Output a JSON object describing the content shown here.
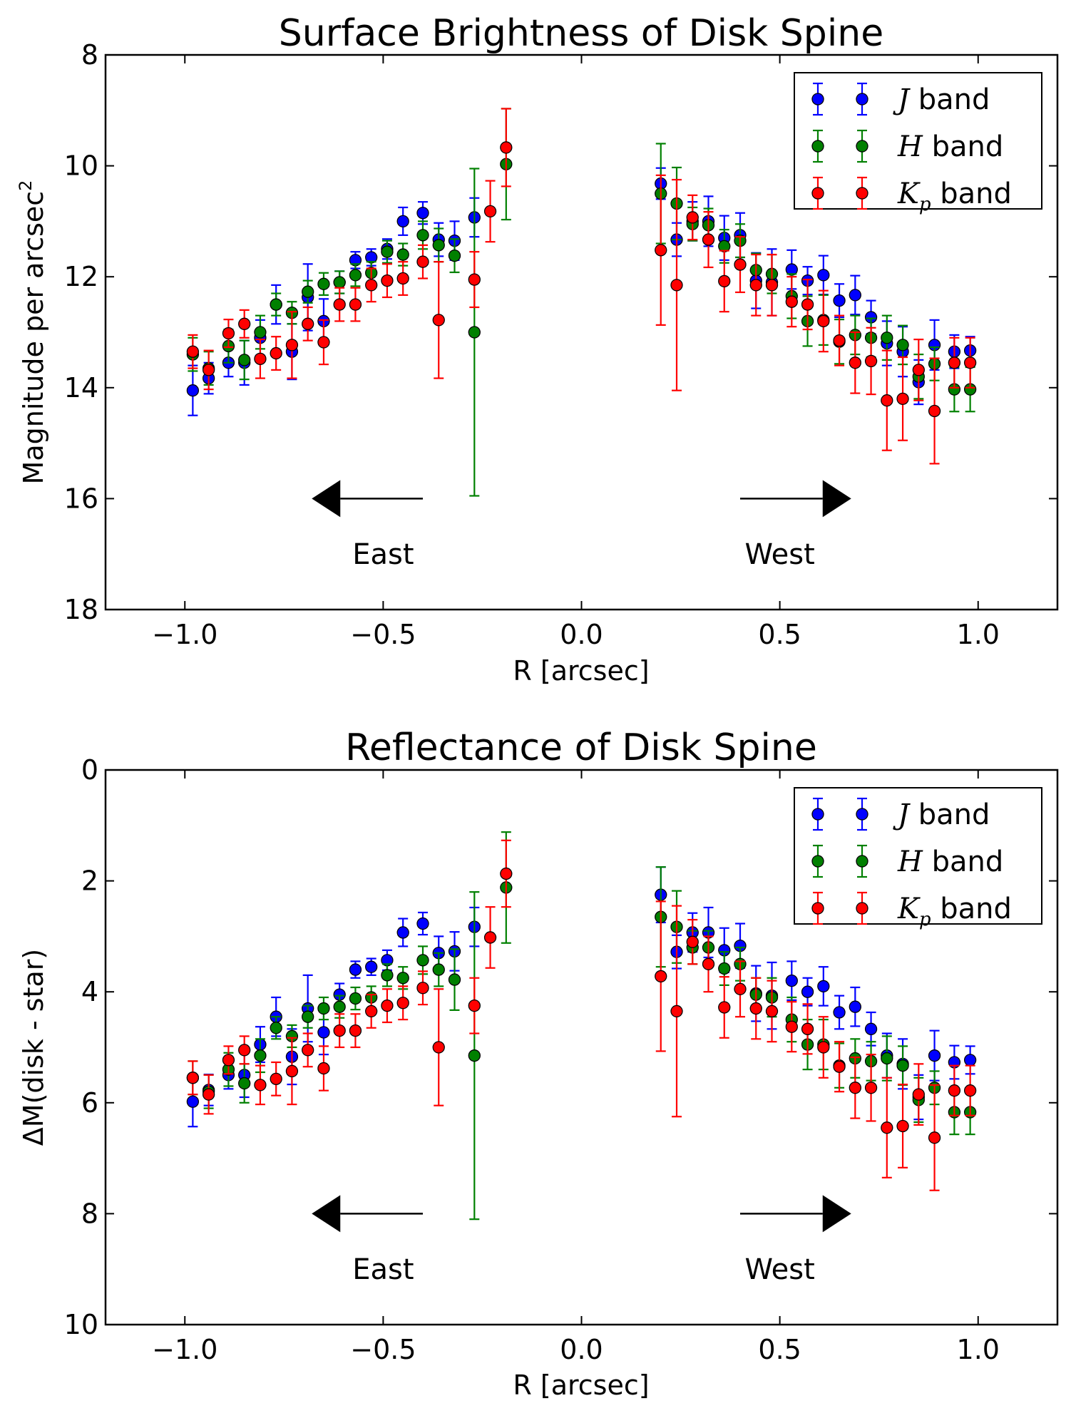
{
  "chart_data": [
    {
      "type": "errorbar",
      "title": "Surface Brightness of Disk Spine",
      "xlabel": "R [arcsec]",
      "ylabel": "Magnitude per arcsec",
      "ylabel_superscript": "2",
      "xlim": [
        -1.2,
        1.2
      ],
      "ylim": [
        18,
        8
      ],
      "y_inverted": true,
      "xticks": [
        -1.0,
        -0.5,
        0.0,
        0.5,
        1.0
      ],
      "xtick_labels": [
        "−1.0",
        "−0.5",
        "0.0",
        "0.5",
        "1.0"
      ],
      "yticks": [
        8,
        10,
        12,
        14,
        16,
        18
      ],
      "ytick_labels": [
        "8",
        "10",
        "12",
        "14",
        "16",
        "18"
      ],
      "annotations": [
        {
          "text": "East",
          "arrow_from": -0.4,
          "arrow_to": -0.68,
          "arrow_y": 16,
          "text_x": -0.5,
          "text_y": 17
        },
        {
          "text": "West",
          "arrow_from": 0.4,
          "arrow_to": 0.68,
          "arrow_y": 16,
          "text_x": 0.5,
          "text_y": 17
        }
      ],
      "legend_position": "upper-right",
      "series": [
        {
          "name": "J",
          "label_suffix": " band",
          "color": "#0000ff",
          "x": [
            -0.98,
            -0.94,
            -0.89,
            -0.85,
            -0.81,
            -0.77,
            -0.73,
            -0.69,
            -0.65,
            -0.61,
            -0.57,
            -0.53,
            -0.49,
            -0.45,
            -0.4,
            -0.36,
            -0.32,
            -0.27,
            0.2,
            0.24,
            0.28,
            0.32,
            0.36,
            0.4,
            0.44,
            0.48,
            0.53,
            0.57,
            0.61,
            0.65,
            0.69,
            0.73,
            0.77,
            0.81,
            0.85,
            0.89,
            0.94,
            0.98
          ],
          "y": [
            14.05,
            13.83,
            13.55,
            13.55,
            13.1,
            12.5,
            13.35,
            12.37,
            12.8,
            12.1,
            11.7,
            11.65,
            11.5,
            11.0,
            10.85,
            11.33,
            11.35,
            10.93,
            10.32,
            11.33,
            11.0,
            11.0,
            11.3,
            11.25,
            12.07,
            12.1,
            11.87,
            12.07,
            11.97,
            12.43,
            12.33,
            12.73,
            13.2,
            13.35,
            13.9,
            13.23,
            13.35,
            13.33
          ],
          "err": [
            0.45,
            0.28,
            0.25,
            0.4,
            0.32,
            0.35,
            0.5,
            0.6,
            0.4,
            0.2,
            0.15,
            0.15,
            0.18,
            0.25,
            0.2,
            0.3,
            0.35,
            0.35,
            0.28,
            0.3,
            0.35,
            0.45,
            0.4,
            0.4,
            0.5,
            0.6,
            0.35,
            0.25,
            0.35,
            0.3,
            0.35,
            0.3,
            0.4,
            0.45,
            0.4,
            0.45,
            0.3,
            0.25
          ]
        },
        {
          "name": "H",
          "label_suffix": " band",
          "color": "#008000",
          "x": [
            -0.98,
            -0.94,
            -0.89,
            -0.85,
            -0.81,
            -0.77,
            -0.73,
            -0.69,
            -0.65,
            -0.61,
            -0.57,
            -0.53,
            -0.49,
            -0.45,
            -0.4,
            -0.36,
            -0.32,
            -0.27,
            -0.19,
            0.2,
            0.24,
            0.28,
            0.32,
            0.36,
            0.4,
            0.44,
            0.48,
            0.53,
            0.57,
            0.61,
            0.65,
            0.69,
            0.73,
            0.77,
            0.81,
            0.85,
            0.89,
            0.94,
            0.98
          ],
          "y": [
            13.4,
            13.65,
            13.25,
            13.5,
            13.0,
            12.5,
            12.65,
            12.27,
            12.13,
            12.1,
            11.97,
            11.93,
            11.55,
            11.6,
            11.25,
            11.43,
            11.62,
            13.0,
            9.97,
            10.5,
            10.68,
            11.05,
            11.07,
            11.45,
            11.35,
            11.88,
            11.95,
            12.35,
            12.8,
            12.78,
            13.17,
            13.05,
            13.1,
            13.1,
            13.23,
            13.8,
            13.57,
            14.03,
            14.03
          ],
          "err": [
            0.3,
            0.3,
            0.3,
            0.35,
            0.3,
            0.2,
            0.2,
            0.2,
            0.2,
            0.2,
            0.2,
            0.2,
            0.2,
            0.2,
            0.25,
            0.3,
            0.3,
            2.95,
            1.0,
            0.9,
            0.65,
            0.3,
            0.3,
            0.3,
            0.3,
            0.3,
            0.35,
            0.4,
            0.45,
            0.45,
            0.4,
            0.35,
            0.35,
            0.4,
            0.35,
            0.4,
            0.3,
            0.4,
            0.4
          ]
        },
        {
          "name": "K",
          "sub": "p",
          "label_suffix": " band",
          "color": "#ff0000",
          "x": [
            -0.98,
            -0.94,
            -0.89,
            -0.85,
            -0.81,
            -0.77,
            -0.73,
            -0.69,
            -0.65,
            -0.61,
            -0.57,
            -0.53,
            -0.49,
            -0.45,
            -0.4,
            -0.36,
            -0.27,
            -0.23,
            -0.19,
            0.2,
            0.24,
            0.28,
            0.32,
            0.36,
            0.4,
            0.44,
            0.48,
            0.53,
            0.57,
            0.61,
            0.65,
            0.69,
            0.73,
            0.77,
            0.81,
            0.85,
            0.89,
            0.94,
            0.98
          ],
          "y": [
            13.35,
            13.68,
            13.02,
            12.85,
            13.48,
            13.38,
            13.23,
            12.85,
            13.18,
            12.5,
            12.5,
            12.15,
            12.07,
            12.03,
            11.73,
            12.78,
            12.05,
            10.82,
            9.67,
            11.52,
            12.15,
            10.93,
            11.33,
            12.08,
            11.78,
            12.15,
            12.15,
            12.45,
            12.5,
            12.8,
            13.15,
            13.55,
            13.52,
            14.23,
            14.2,
            13.68,
            14.42,
            13.55,
            13.55
          ],
          "err": [
            0.3,
            0.35,
            0.25,
            0.25,
            0.35,
            0.3,
            0.6,
            0.3,
            0.4,
            0.3,
            0.3,
            0.3,
            0.3,
            0.3,
            0.3,
            1.05,
            0.5,
            0.55,
            0.7,
            1.35,
            1.9,
            0.4,
            0.5,
            0.55,
            0.5,
            0.55,
            0.55,
            0.45,
            0.45,
            0.55,
            0.45,
            0.55,
            0.6,
            0.9,
            0.75,
            0.55,
            0.95,
            0.45,
            0.45
          ]
        }
      ]
    },
    {
      "type": "errorbar",
      "title": "Reflectance of Disk Spine",
      "xlabel": "R [arcsec]",
      "ylabel": "ΔM(disk - star)",
      "ylabel_superscript": "",
      "xlim": [
        -1.2,
        1.2
      ],
      "ylim": [
        10,
        0
      ],
      "y_inverted": true,
      "xticks": [
        -1.0,
        -0.5,
        0.0,
        0.5,
        1.0
      ],
      "xtick_labels": [
        "−1.0",
        "−0.5",
        "0.0",
        "0.5",
        "1.0"
      ],
      "yticks": [
        0,
        2,
        4,
        6,
        8,
        10
      ],
      "ytick_labels": [
        "0",
        "2",
        "4",
        "6",
        "8",
        "10"
      ],
      "annotations": [
        {
          "text": "East",
          "arrow_from": -0.4,
          "arrow_to": -0.68,
          "arrow_y": 8,
          "text_x": -0.5,
          "text_y": 9
        },
        {
          "text": "West",
          "arrow_from": 0.4,
          "arrow_to": 0.68,
          "arrow_y": 8,
          "text_x": 0.5,
          "text_y": 9
        }
      ],
      "legend_position": "upper-right",
      "series": [
        {
          "name": "J",
          "label_suffix": " band",
          "color": "#0000ff",
          "x": [
            -0.98,
            -0.94,
            -0.89,
            -0.85,
            -0.81,
            -0.77,
            -0.73,
            -0.69,
            -0.65,
            -0.61,
            -0.57,
            -0.53,
            -0.49,
            -0.45,
            -0.4,
            -0.36,
            -0.32,
            -0.27,
            0.2,
            0.24,
            0.28,
            0.32,
            0.36,
            0.4,
            0.44,
            0.48,
            0.53,
            0.57,
            0.61,
            0.65,
            0.69,
            0.73,
            0.77,
            0.81,
            0.85,
            0.89,
            0.94,
            0.98
          ],
          "y": [
            5.98,
            5.77,
            5.5,
            5.5,
            4.95,
            4.45,
            5.17,
            4.3,
            4.73,
            4.05,
            3.6,
            3.55,
            3.43,
            2.93,
            2.77,
            3.3,
            3.27,
            2.83,
            2.25,
            3.28,
            2.93,
            2.93,
            3.25,
            3.17,
            4.03,
            4.07,
            3.8,
            4.0,
            3.9,
            4.37,
            4.27,
            4.67,
            5.15,
            5.3,
            5.9,
            5.15,
            5.27,
            5.23
          ],
          "err": [
            0.45,
            0.28,
            0.25,
            0.4,
            0.32,
            0.35,
            0.5,
            0.6,
            0.4,
            0.2,
            0.15,
            0.15,
            0.18,
            0.25,
            0.2,
            0.3,
            0.35,
            0.35,
            0.5,
            0.3,
            0.35,
            0.45,
            0.4,
            0.4,
            0.5,
            0.6,
            0.35,
            0.25,
            0.35,
            0.3,
            0.35,
            0.3,
            0.4,
            0.45,
            0.4,
            0.45,
            0.3,
            0.25
          ]
        },
        {
          "name": "H",
          "label_suffix": " band",
          "color": "#008000",
          "x": [
            -0.98,
            -0.94,
            -0.89,
            -0.85,
            -0.81,
            -0.77,
            -0.73,
            -0.69,
            -0.65,
            -0.61,
            -0.57,
            -0.53,
            -0.49,
            -0.45,
            -0.4,
            -0.36,
            -0.32,
            -0.27,
            -0.19,
            0.2,
            0.24,
            0.28,
            0.32,
            0.36,
            0.4,
            0.44,
            0.48,
            0.53,
            0.57,
            0.61,
            0.65,
            0.69,
            0.73,
            0.77,
            0.81,
            0.85,
            0.89,
            0.94,
            0.98
          ],
          "y": [
            5.55,
            5.8,
            5.4,
            5.65,
            5.15,
            4.65,
            4.8,
            4.45,
            4.3,
            4.27,
            4.12,
            4.1,
            3.7,
            3.75,
            3.43,
            3.6,
            3.78,
            5.15,
            2.12,
            2.65,
            2.83,
            3.2,
            3.2,
            3.58,
            3.5,
            4.05,
            4.1,
            4.5,
            4.95,
            4.95,
            5.33,
            5.2,
            5.25,
            5.2,
            5.33,
            5.95,
            5.73,
            6.17,
            6.17
          ],
          "err": [
            0.3,
            0.3,
            0.3,
            0.35,
            0.3,
            0.2,
            0.2,
            0.2,
            0.2,
            0.2,
            0.2,
            0.2,
            0.2,
            0.2,
            0.25,
            0.3,
            0.55,
            2.95,
            1.0,
            0.9,
            0.65,
            0.3,
            0.3,
            0.3,
            0.3,
            0.3,
            0.35,
            0.4,
            0.45,
            0.45,
            0.4,
            0.35,
            0.35,
            0.4,
            0.35,
            0.4,
            0.3,
            0.4,
            0.4
          ]
        },
        {
          "name": "K",
          "sub": "p",
          "label_suffix": " band",
          "color": "#ff0000",
          "x": [
            -0.98,
            -0.94,
            -0.89,
            -0.85,
            -0.81,
            -0.77,
            -0.73,
            -0.69,
            -0.65,
            -0.61,
            -0.57,
            -0.53,
            -0.49,
            -0.45,
            -0.4,
            -0.36,
            -0.27,
            -0.23,
            -0.19,
            0.2,
            0.24,
            0.28,
            0.32,
            0.36,
            0.4,
            0.44,
            0.48,
            0.53,
            0.57,
            0.61,
            0.65,
            0.69,
            0.73,
            0.77,
            0.81,
            0.85,
            0.89,
            0.94,
            0.98
          ],
          "y": [
            5.55,
            5.85,
            5.23,
            5.05,
            5.68,
            5.57,
            5.43,
            5.05,
            5.38,
            4.7,
            4.7,
            4.35,
            4.25,
            4.2,
            3.93,
            5.0,
            4.25,
            3.02,
            1.87,
            3.72,
            4.35,
            3.1,
            3.5,
            4.28,
            3.95,
            4.3,
            4.35,
            4.63,
            4.67,
            5.0,
            5.35,
            5.73,
            5.73,
            6.45,
            6.42,
            5.85,
            6.63,
            5.78,
            5.78
          ],
          "err": [
            0.3,
            0.35,
            0.25,
            0.25,
            0.35,
            0.3,
            0.6,
            0.3,
            0.4,
            0.3,
            0.3,
            0.3,
            0.3,
            0.3,
            0.3,
            1.05,
            0.5,
            0.55,
            0.6,
            1.35,
            1.9,
            0.4,
            0.5,
            0.55,
            0.5,
            0.55,
            0.55,
            0.45,
            0.45,
            0.55,
            0.45,
            0.55,
            0.6,
            0.9,
            0.75,
            0.55,
            0.95,
            0.45,
            0.45
          ]
        }
      ]
    }
  ]
}
